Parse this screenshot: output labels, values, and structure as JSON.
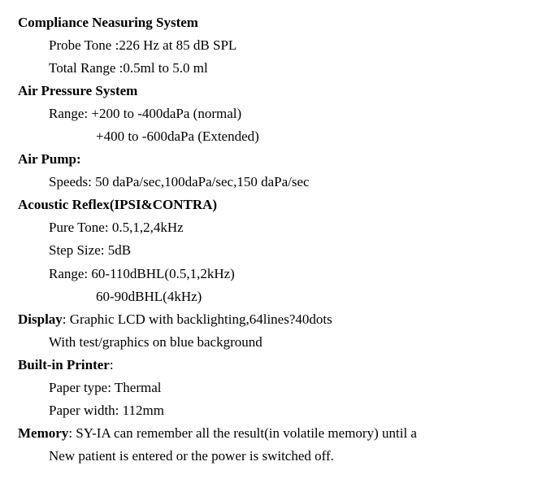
{
  "compliance": {
    "heading": "Compliance Neasuring System",
    "probe_tone": "Probe  Tone :226 Hz at 85 dB SPL",
    "total_range": "Total Range :0.5ml to 5.0 ml"
  },
  "air_pressure": {
    "heading": "Air Pressure System",
    "range_normal": "Range: +200 to -400daPa (normal)",
    "range_extended": "+400 to -600daPa (Extended)"
  },
  "air_pump": {
    "heading": "Air Pump:",
    "speeds": "Speeds: 50 daPa/sec,100daPa/sec,150 daPa/sec"
  },
  "acoustic_reflex": {
    "heading": "Acoustic Reflex(IPSI&CONTRA)",
    "pure_tone": "Pure Tone: 0.5,1,2,4kHz",
    "step_size": "Step Size: 5dB",
    "range1": "Range:   60-110dBHL(0.5,1,2kHz)",
    "range2": "60-90dBHL(4kHz)"
  },
  "display": {
    "heading": "Display",
    "text": ": Graphic LCD with backlighting,64lines?40dots",
    "sub": "With test/graphics on blue background"
  },
  "printer": {
    "heading": "Built-in Printer",
    "colon": ":",
    "paper_type": "Paper type: Thermal",
    "paper_width": "Paper width: 112mm"
  },
  "memory": {
    "heading": "Memory",
    "text": ": SY-IA can remember all the result(in volatile memory) until a",
    "sub": "New patient is entered or the power is switched off."
  }
}
